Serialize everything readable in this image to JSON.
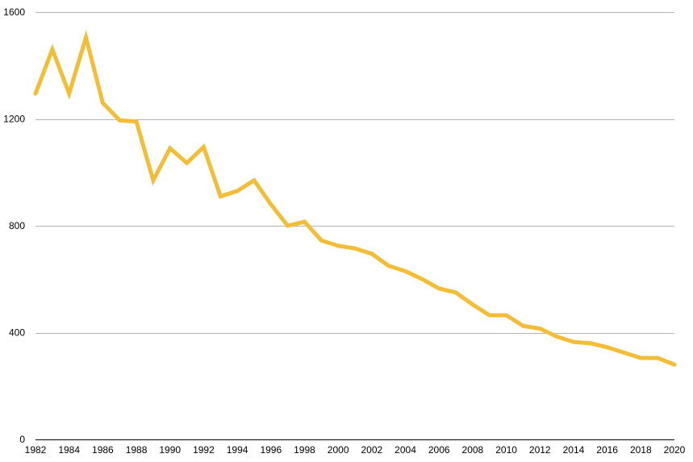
{
  "chart_data": {
    "type": "line",
    "title": "",
    "xlabel": "",
    "ylabel": "",
    "x": [
      1982,
      1983,
      1984,
      1985,
      1986,
      1987,
      1988,
      1989,
      1990,
      1991,
      1992,
      1993,
      1994,
      1995,
      1996,
      1997,
      1998,
      1999,
      2000,
      2001,
      2002,
      2003,
      2004,
      2005,
      2006,
      2007,
      2008,
      2009,
      2010,
      2011,
      2012,
      2013,
      2014,
      2015,
      2016,
      2017,
      2018,
      2019,
      2020
    ],
    "series": [
      {
        "values": [
          1295,
          1460,
          1295,
          1505,
          1260,
          1195,
          1190,
          970,
          1090,
          1035,
          1095,
          910,
          930,
          970,
          880,
          800,
          815,
          745,
          725,
          715,
          695,
          650,
          630,
          600,
          565,
          550,
          505,
          465,
          465,
          425,
          415,
          385,
          365,
          360,
          345,
          325,
          305,
          305,
          280
        ],
        "color": "#f3bd35"
      }
    ],
    "ylim": [
      0,
      1600
    ],
    "yticks": [
      0,
      400,
      800,
      1200,
      1600
    ],
    "xlim": [
      1982,
      2020
    ],
    "xtick_labels": [
      "1982",
      "1984",
      "1986",
      "1988",
      "1990",
      "1992",
      "1994",
      "1996",
      "1998",
      "2000",
      "2002",
      "2004",
      "2006",
      "2008",
      "2010",
      "2012",
      "2014",
      "2016",
      "2018",
      "2020"
    ],
    "grid": true,
    "legend": "none"
  }
}
